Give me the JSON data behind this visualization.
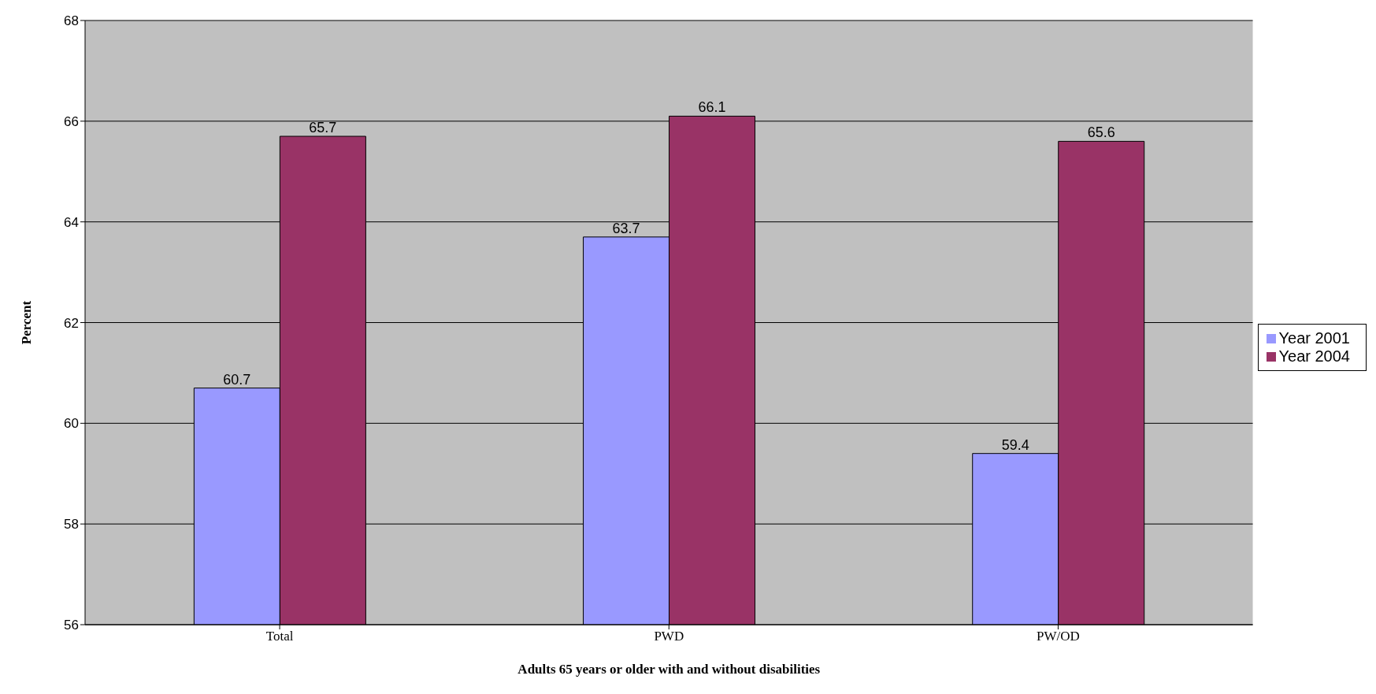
{
  "chart_data": {
    "type": "bar",
    "xlabel": "Adults 65 years or older with and without disabilities",
    "ylabel": "Percent",
    "categories": [
      "Total",
      "PWD",
      "PW/OD"
    ],
    "series": [
      {
        "name": "Year 2001",
        "color": "#9999ff",
        "values": [
          60.7,
          63.7,
          59.4
        ]
      },
      {
        "name": "Year 2004",
        "color": "#993366",
        "values": [
          65.7,
          66.1,
          65.6
        ]
      }
    ],
    "ylim": [
      56,
      68
    ],
    "yticks": [
      56,
      58,
      60,
      62,
      64,
      66,
      68
    ],
    "grid": "y",
    "legend": "right",
    "data_labels": true
  }
}
